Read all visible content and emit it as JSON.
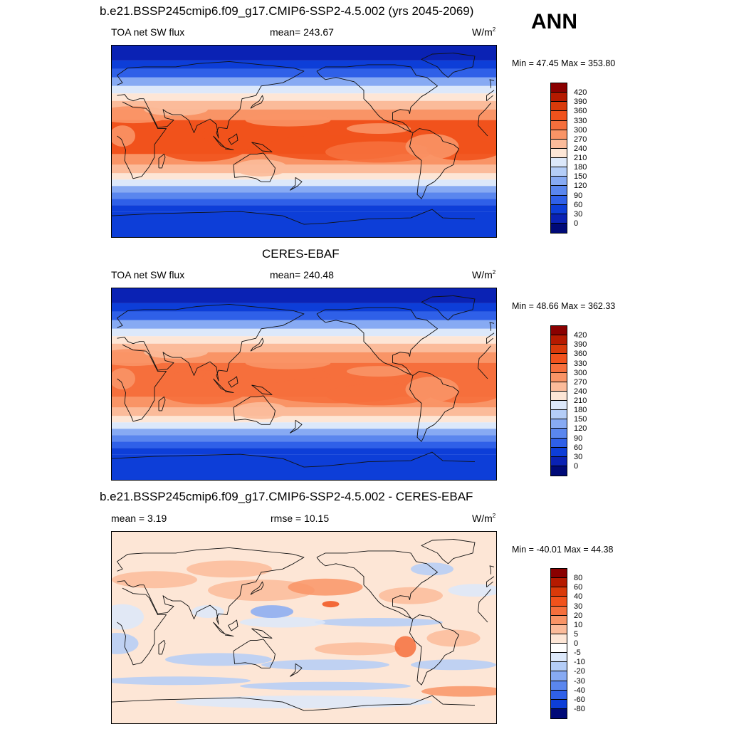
{
  "season": "ANN",
  "panels": [
    {
      "title": "b.e21.BSSP245cmip6.f09_g17.CMIP6-SSP2-4.5.002 (yrs 2045-2069)",
      "left_label": "TOA net SW flux",
      "center_label": "mean= 243.67",
      "units": "W/m",
      "units_sup": "2",
      "minmax": "Min =  47.45 Max = 353.80",
      "palette": "abs",
      "colorbar_labels": [
        "420",
        "390",
        "360",
        "330",
        "300",
        "270",
        "240",
        "210",
        "180",
        "150",
        "120",
        "90",
        "60",
        "30",
        "0"
      ]
    },
    {
      "title": "CERES-EBAF",
      "left_label": "TOA net SW flux",
      "center_label": "mean= 240.48",
      "units": "W/m",
      "units_sup": "2",
      "minmax": "Min =  48.66 Max = 362.33",
      "palette": "abs",
      "colorbar_labels": [
        "420",
        "390",
        "360",
        "330",
        "300",
        "270",
        "240",
        "210",
        "180",
        "150",
        "120",
        "90",
        "60",
        "30",
        "0"
      ]
    },
    {
      "title": "b.e21.BSSP245cmip6.f09_g17.CMIP6-SSP2-4.5.002 - CERES-EBAF",
      "left_label": "mean =   3.19",
      "center_label": "rmse =  10.15",
      "units": "W/m",
      "units_sup": "2",
      "minmax": "Min = -40.01 Max =  44.38",
      "palette": "diff",
      "colorbar_labels": [
        "80",
        "60",
        "40",
        "30",
        "20",
        "10",
        "5",
        "0",
        "-5",
        "-10",
        "-20",
        "-30",
        "-40",
        "-60",
        "-80"
      ]
    }
  ],
  "palettes": {
    "abs": [
      "#8a0000",
      "#b51a00",
      "#d93a0a",
      "#f1521c",
      "#f66f3c",
      "#f99466",
      "#fbbb9a",
      "#fde6d6",
      "#dce8fa",
      "#b4cdf7",
      "#87aaf3",
      "#5a86ee",
      "#2f60e8",
      "#0d3ed8",
      "#0a22b4",
      "#000a78"
    ],
    "diff": [
      "#8a0000",
      "#b51a00",
      "#d93a0a",
      "#f1521c",
      "#f66f3c",
      "#f99466",
      "#fbbb9a",
      "#fde6d6",
      "#ffffff",
      "#dce8fa",
      "#b4cdf7",
      "#87aaf3",
      "#5a86ee",
      "#2f60e8",
      "#0d3ed8",
      "#000a78"
    ]
  }
}
